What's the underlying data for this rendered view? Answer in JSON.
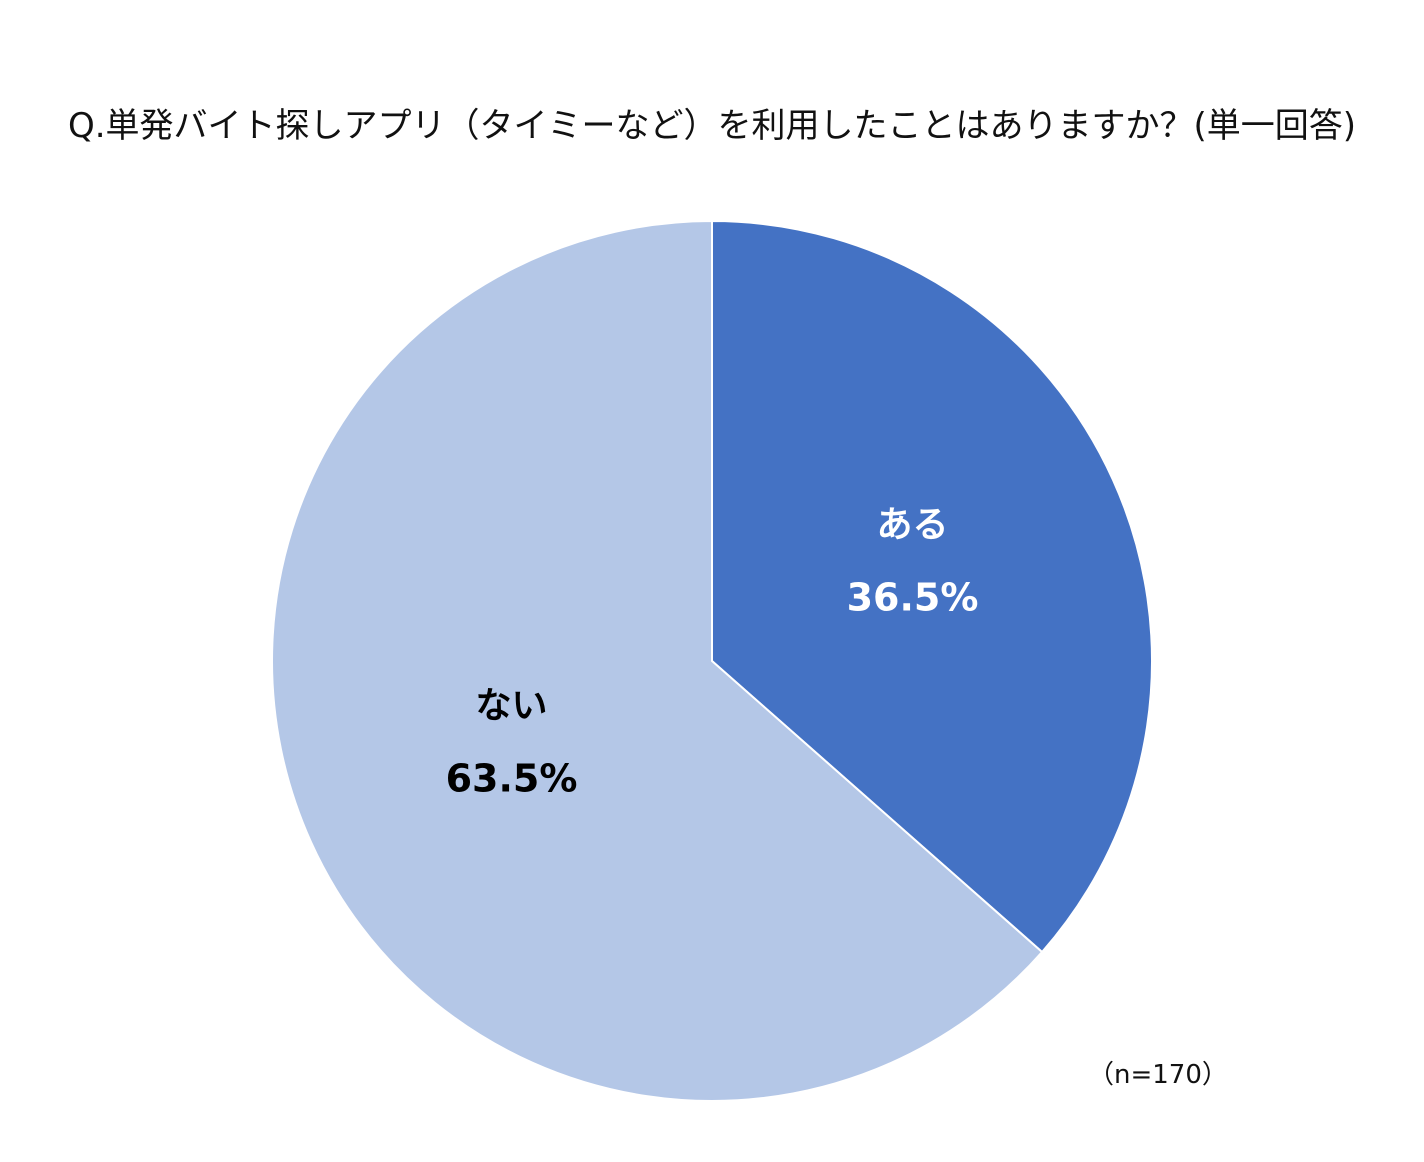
{
  "chart_data": {
    "type": "pie",
    "title": "Q.単発バイト探しアプリ（タイミーなど）を利用したことはありますか？(単一回答)",
    "categories": [
      "ある",
      "ない"
    ],
    "values": [
      36.5,
      63.5
    ],
    "value_labels": [
      "36.5%",
      "63.5%"
    ],
    "colors": [
      "#4472C4",
      "#B4C7E7"
    ],
    "label_colors": [
      "#FFFFFF",
      "#000000"
    ],
    "start_angle": "12 o'clock",
    "direction": "clockwise",
    "legend": "none",
    "note": "（n=170）"
  }
}
